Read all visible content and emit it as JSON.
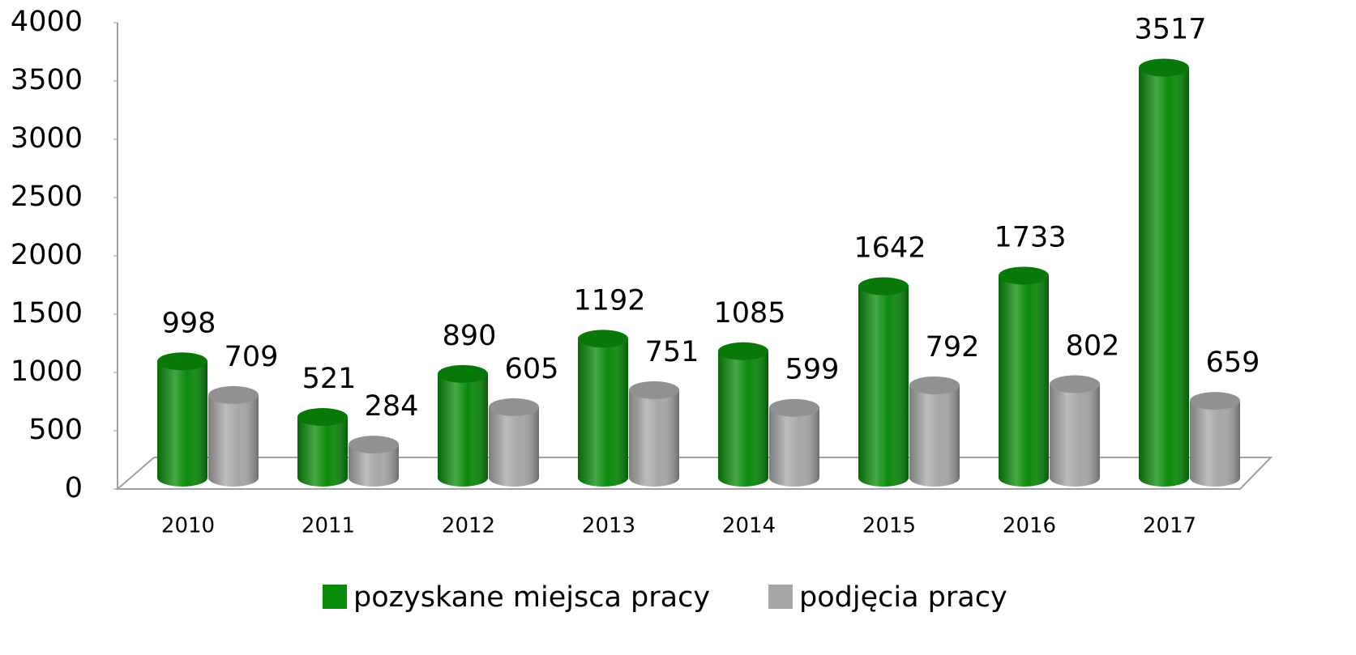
{
  "chart_data": {
    "type": "bar",
    "categories": [
      "2010",
      "2011",
      "2012",
      "2013",
      "2014",
      "2015",
      "2016",
      "2017"
    ],
    "series": [
      {
        "name": "pozyskane miejsca pracy",
        "color": "#0a8a0a",
        "values": [
          998,
          521,
          890,
          1192,
          1085,
          1642,
          1733,
          3517
        ]
      },
      {
        "name": "podjęcia pracy",
        "color": "#a6a6a6",
        "values": [
          709,
          284,
          605,
          751,
          599,
          792,
          802,
          659
        ]
      }
    ],
    "ylim": [
      0,
      4000
    ],
    "yticks": [
      0,
      500,
      1000,
      1500,
      2000,
      2500,
      3000,
      3500,
      4000
    ],
    "grid": false,
    "legend": "bottom"
  }
}
